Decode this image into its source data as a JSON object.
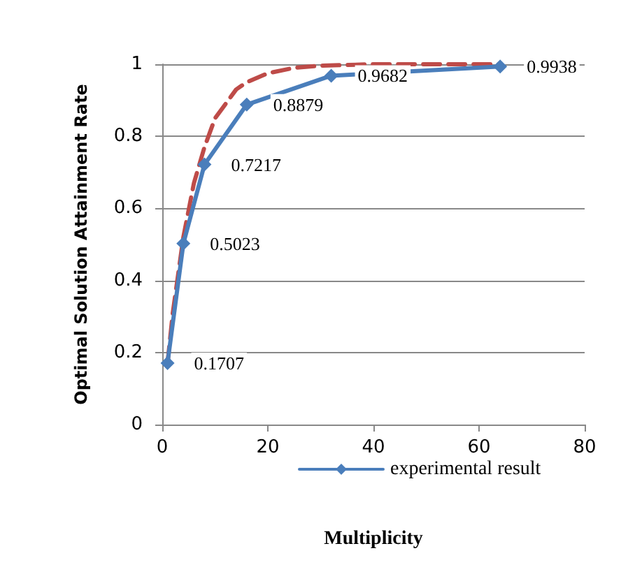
{
  "chart_data": {
    "type": "line",
    "xlabel": "Multiplicity",
    "ylabel": "Optimal Solution Attainment Rate",
    "xlim": [
      0,
      80
    ],
    "xticks": [
      0,
      20,
      40,
      60,
      80
    ],
    "ylim": [
      0,
      1
    ],
    "yticks": [
      0,
      0.2,
      0.4,
      0.6,
      0.8,
      1
    ],
    "grid": "y",
    "legend": "bottom",
    "series": [
      {
        "name": "experimental result",
        "color": "#4a7ebb",
        "marker": "diamond",
        "line_style": "solid",
        "x": [
          1,
          4,
          8,
          16,
          32,
          64
        ],
        "values": [
          0.1707,
          0.5023,
          0.7217,
          0.8879,
          0.9682,
          0.9938
        ],
        "value_labels": [
          "0.1707",
          "0.5023",
          "0.7217",
          "0.8879",
          "0.9682",
          "0.9938"
        ]
      },
      {
        "color": "#be4b48",
        "marker": "none",
        "line_style": "dashed",
        "x": [
          1,
          2,
          4,
          6,
          8,
          10,
          12,
          14,
          16,
          20,
          25,
          30,
          40,
          64
        ],
        "values": [
          0.17,
          0.31,
          0.52,
          0.67,
          0.77,
          0.85,
          0.89,
          0.93,
          0.95,
          0.975,
          0.99,
          0.996,
          1,
          1
        ]
      }
    ]
  }
}
